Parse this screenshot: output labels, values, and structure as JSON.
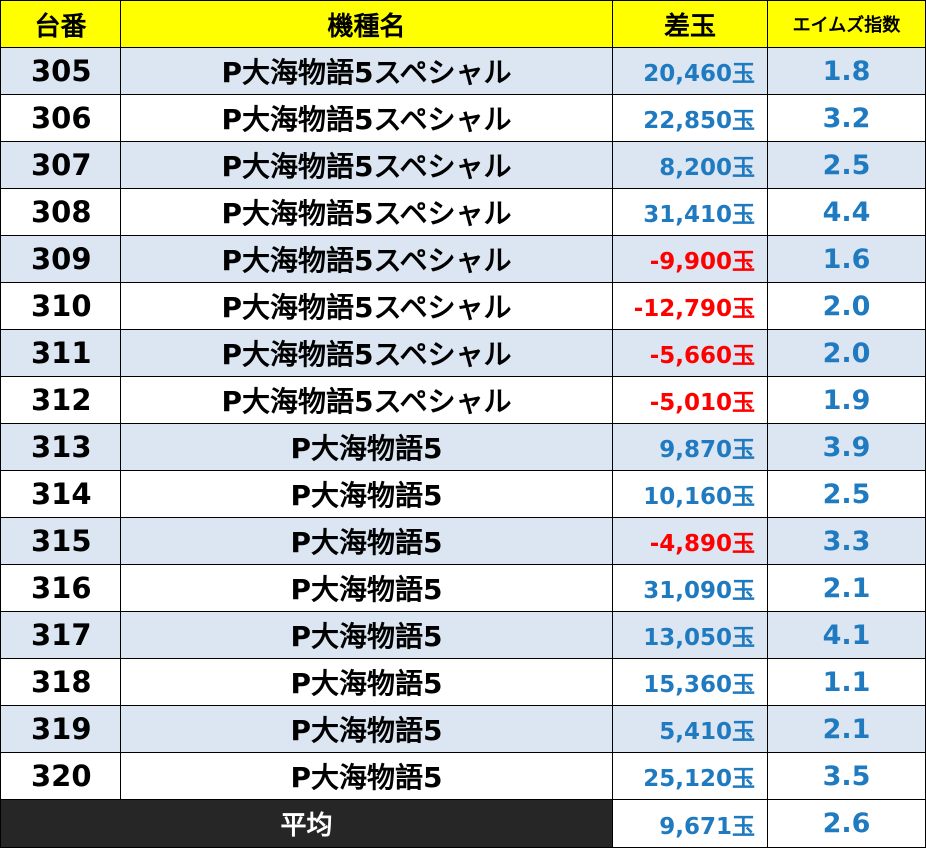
{
  "header": {
    "num": "台番",
    "model": "機種名",
    "diff": "差玉",
    "index": "エイムズ指数"
  },
  "colors": {
    "header_bg": "#ffff00",
    "stripe": "#dce6f2",
    "positive": "#1f7ac0",
    "negative": "#ff0000",
    "footer_label_bg": "#262626"
  },
  "rows": [
    {
      "num": "305",
      "model": "P大海物語5スペシャル",
      "diff": "20,460玉",
      "index": "1.8"
    },
    {
      "num": "306",
      "model": "P大海物語5スペシャル",
      "diff": "22,850玉",
      "index": "3.2"
    },
    {
      "num": "307",
      "model": "P大海物語5スペシャル",
      "diff": "8,200玉",
      "index": "2.5"
    },
    {
      "num": "308",
      "model": "P大海物語5スペシャル",
      "diff": "31,410玉",
      "index": "4.4"
    },
    {
      "num": "309",
      "model": "P大海物語5スペシャル",
      "diff": "-9,900玉",
      "index": "1.6"
    },
    {
      "num": "310",
      "model": "P大海物語5スペシャル",
      "diff": "-12,790玉",
      "index": "2.0"
    },
    {
      "num": "311",
      "model": "P大海物語5スペシャル",
      "diff": "-5,660玉",
      "index": "2.0"
    },
    {
      "num": "312",
      "model": "P大海物語5スペシャル",
      "diff": "-5,010玉",
      "index": "1.9"
    },
    {
      "num": "313",
      "model": "P大海物語5",
      "diff": "9,870玉",
      "index": "3.9"
    },
    {
      "num": "314",
      "model": "P大海物語5",
      "diff": "10,160玉",
      "index": "2.5"
    },
    {
      "num": "315",
      "model": "P大海物語5",
      "diff": "-4,890玉",
      "index": "3.3"
    },
    {
      "num": "316",
      "model": "P大海物語5",
      "diff": "31,090玉",
      "index": "2.1"
    },
    {
      "num": "317",
      "model": "P大海物語5",
      "diff": "13,050玉",
      "index": "4.1"
    },
    {
      "num": "318",
      "model": "P大海物語5",
      "diff": "15,360玉",
      "index": "1.1"
    },
    {
      "num": "319",
      "model": "P大海物語5",
      "diff": "5,410玉",
      "index": "2.1"
    },
    {
      "num": "320",
      "model": "P大海物語5",
      "diff": "25,120玉",
      "index": "3.5"
    }
  ],
  "footer": {
    "label": "平均",
    "diff": "9,671玉",
    "index": "2.6"
  }
}
